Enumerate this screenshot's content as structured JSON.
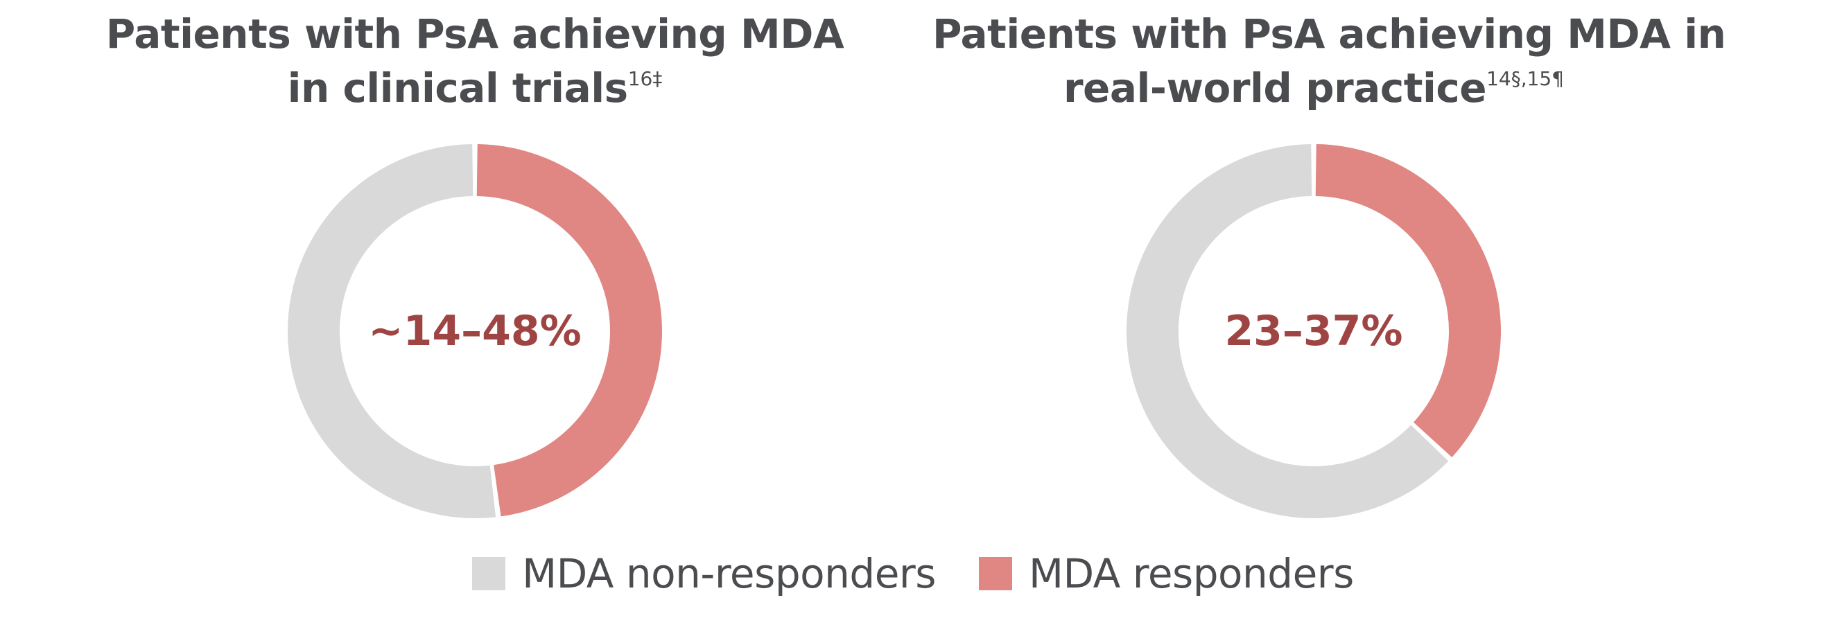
{
  "chart_data": [
    {
      "type": "pie",
      "title": "Patients with PsA achieving MDA in clinical trials",
      "title_lines": [
        "Patients with PsA achieving MDA",
        "in clinical trials"
      ],
      "title_superscript": "16‡",
      "center_label": "~14–48%",
      "slices": [
        {
          "name": "MDA responders",
          "value": 48,
          "color": "#e08683"
        },
        {
          "name": "MDA non-responders",
          "value": 52,
          "color": "#d9d9d9"
        }
      ]
    },
    {
      "type": "pie",
      "title": "Patients with PsA achieving MDA in real-world practice",
      "title_lines": [
        "Patients with PsA achieving MDA in",
        "real-world practice"
      ],
      "title_superscript": "14§,15¶",
      "center_label": "23–37%",
      "slices": [
        {
          "name": "MDA responders",
          "value": 37,
          "color": "#e08683"
        },
        {
          "name": "MDA non-responders",
          "value": 63,
          "color": "#d9d9d9"
        }
      ]
    }
  ],
  "legend": {
    "items": [
      {
        "label": "MDA non-responders",
        "color": "#d9d9d9"
      },
      {
        "label": "MDA responders",
        "color": "#e08683"
      }
    ]
  }
}
